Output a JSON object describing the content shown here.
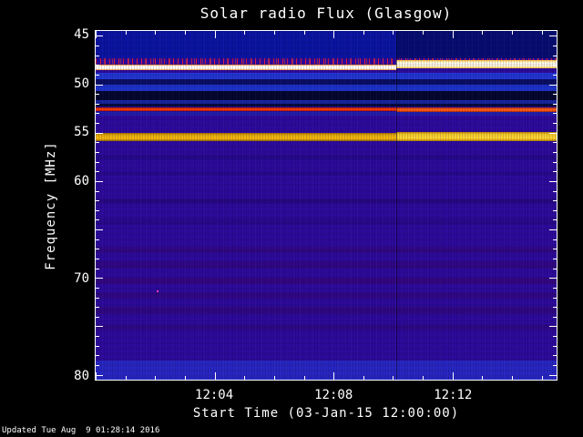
{
  "footer": {
    "updated": "Updated Tue Aug  9 01:28:14 2016"
  },
  "chart_data": {
    "type": "heatmap",
    "title": "Solar radio Flux (Glasgow)",
    "xlabel": "Start Time (03-Jan-15 12:00:00)",
    "ylabel": "Frequency [MHz]",
    "x_axis_range_minutes": [
      0,
      15.5
    ],
    "y_axis_range_mhz": [
      44.5,
      80.5
    ],
    "x_ticks": [
      {
        "minute": 4,
        "label": "12:04"
      },
      {
        "minute": 8,
        "label": "12:08"
      },
      {
        "minute": 12,
        "label": "12:12"
      }
    ],
    "y_ticks": [
      {
        "mhz": 45,
        "label": "45"
      },
      {
        "mhz": 50,
        "label": "50"
      },
      {
        "mhz": 55,
        "label": "55"
      },
      {
        "mhz": 60,
        "label": "60"
      },
      {
        "mhz": 70,
        "label": "70"
      },
      {
        "mhz": 80,
        "label": "80"
      }
    ],
    "background_color": "#2d0a9a",
    "axis_color": "#ffffff",
    "segment_change_minute": 10.1,
    "bands": [
      {
        "name": "top-noise",
        "f0": 44.5,
        "f1": 47.35,
        "segment": "full",
        "color": "#0a14a0",
        "texture": "vnoise"
      },
      {
        "name": "top-noise-right-dark",
        "f0": 44.5,
        "f1": 47.35,
        "segment": "right",
        "color": "rgba(0,0,0,0.30)"
      },
      {
        "name": "red-speckle-row",
        "f0": 47.35,
        "f1": 47.95,
        "segment": "full",
        "texture": "red-speckle"
      },
      {
        "name": "carrier-line-left",
        "f0": 47.95,
        "f1": 48.5,
        "segment": "left",
        "core": "#ffffff",
        "fringe": "#ff9d2e"
      },
      {
        "name": "carrier-line-right",
        "f0": 47.55,
        "f1": 48.35,
        "segment": "right",
        "core": "#fffbe6",
        "fringe": "#ffc32e"
      },
      {
        "name": "stripe-blue-1",
        "f0": 48.85,
        "f1": 49.5,
        "segment": "full",
        "color": "#2336d2"
      },
      {
        "name": "stripe-dark-1",
        "f0": 49.5,
        "f1": 50.0,
        "segment": "full",
        "color": "#0a0e62"
      },
      {
        "name": "stripe-blue-2",
        "f0": 50.0,
        "f1": 50.7,
        "segment": "full",
        "color": "#1d32c8"
      },
      {
        "name": "stripe-dark-2",
        "f0": 50.7,
        "f1": 51.6,
        "segment": "full",
        "color": "#04062c"
      },
      {
        "name": "stripe-blue-3",
        "f0": 51.6,
        "f1": 52.05,
        "segment": "full",
        "color": "#16269e"
      },
      {
        "name": "stripe-dark-3",
        "f0": 52.05,
        "f1": 52.35,
        "segment": "full",
        "color": "#070a38"
      },
      {
        "name": "red-line-left",
        "f0": 52.35,
        "f1": 52.8,
        "segment": "left",
        "core": "#ff3a00",
        "fringe": "#8a1200"
      },
      {
        "name": "red-line-right",
        "f0": 52.4,
        "f1": 52.85,
        "segment": "right",
        "core": "#ff5c14",
        "fringe": "#992200"
      },
      {
        "name": "below-red-blue",
        "f0": 52.85,
        "f1": 53.25,
        "segment": "full",
        "color": "rgba(25,45,190,0.55)"
      },
      {
        "name": "yellow-band-left",
        "f0": 55.05,
        "f1": 55.85,
        "segment": "left",
        "core": "#f2b60b",
        "fringe": "#9a6a00"
      },
      {
        "name": "yellow-band-right",
        "f0": 54.95,
        "f1": 55.9,
        "segment": "right",
        "core": "#ffd62e",
        "fringe": "#b88400"
      },
      {
        "name": "faint-stripe-1",
        "f0": 57.3,
        "f1": 57.8,
        "segment": "full",
        "color": "rgba(0,0,50,0.15)"
      },
      {
        "name": "faint-stripe-2",
        "f0": 59.0,
        "f1": 59.45,
        "segment": "full",
        "color": "rgba(0,0,50,0.13)"
      },
      {
        "name": "faint-stripe-3",
        "f0": 61.8,
        "f1": 62.4,
        "segment": "full",
        "color": "rgba(25,0,55,0.22)"
      },
      {
        "name": "faint-stripe-4",
        "f0": 63.9,
        "f1": 64.5,
        "segment": "full",
        "color": "rgba(25,0,55,0.16)"
      },
      {
        "name": "faint-stripe-5",
        "f0": 66.8,
        "f1": 67.45,
        "segment": "full",
        "color": "rgba(55,0,65,0.25)"
      },
      {
        "name": "faint-stripe-6",
        "f0": 68.3,
        "f1": 69.0,
        "segment": "full",
        "color": "rgba(55,0,65,0.25)"
      },
      {
        "name": "faint-stripe-7",
        "f0": 70.0,
        "f1": 70.65,
        "segment": "full",
        "color": "rgba(65,0,65,0.30)"
      },
      {
        "name": "faint-stripe-8",
        "f0": 71.5,
        "f1": 72.15,
        "segment": "full",
        "color": "rgba(55,0,65,0.25)"
      },
      {
        "name": "faint-stripe-9",
        "f0": 73.0,
        "f1": 73.7,
        "segment": "full",
        "color": "rgba(55,0,65,0.28)"
      },
      {
        "name": "faint-stripe-10",
        "f0": 74.8,
        "f1": 75.45,
        "segment": "full",
        "color": "rgba(45,0,55,0.20)"
      },
      {
        "name": "bottom-noise",
        "f0": 78.55,
        "f1": 80.5,
        "segment": "full",
        "color": "#2726c0",
        "texture": "vnoise-blue"
      }
    ],
    "speckles": [
      {
        "minute": 2.05,
        "mhz": 71.3,
        "color": "#ff3db0"
      }
    ]
  }
}
